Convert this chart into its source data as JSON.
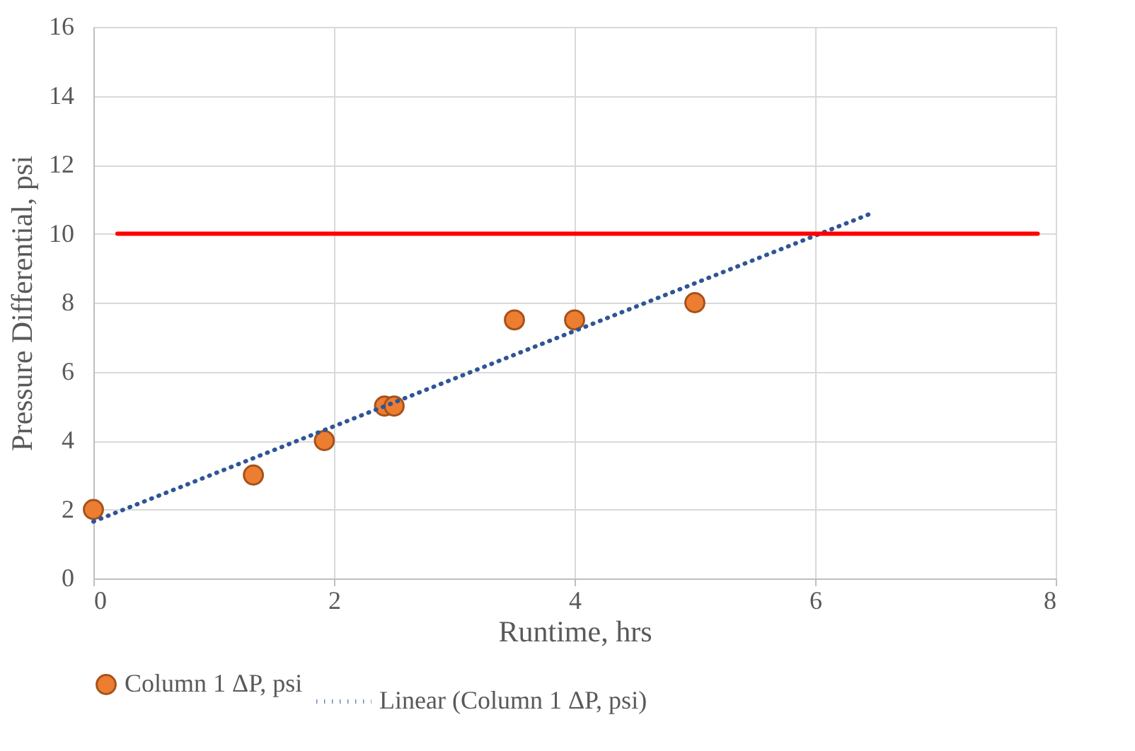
{
  "chart_data": {
    "type": "scatter",
    "xlabel": "Runtime, hrs",
    "ylabel": "Pressure Differential, psi",
    "xlim": [
      0,
      8
    ],
    "xticks": [
      0,
      2,
      4,
      6,
      8
    ],
    "ylim": [
      0,
      16
    ],
    "yticks": [
      0,
      2,
      4,
      6,
      8,
      10,
      12,
      14,
      16
    ],
    "grid": true,
    "legend": "bottom",
    "series": [
      {
        "name": "Column 1 ΔP, psi",
        "marker": "circle",
        "color": "#ed7d31",
        "x": [
          0,
          1.33,
          1.92,
          2.42,
          2.5,
          3.5,
          4,
          5
        ],
        "values": [
          2,
          3,
          4,
          5,
          5,
          7.5,
          7.5,
          8
        ]
      },
      {
        "name": "Linear (Column 1 ΔP, psi)",
        "type": "line",
        "line_style": "dotted",
        "marker": "none",
        "color": "#2f5597",
        "x": [
          0,
          6.46
        ],
        "values": [
          1.65,
          10.58
        ]
      },
      {
        "type": "line",
        "line_style": "solid",
        "marker": "none",
        "color": "#ff0000",
        "x": [
          0.2,
          7.85
        ],
        "values": [
          10,
          10
        ]
      }
    ]
  }
}
